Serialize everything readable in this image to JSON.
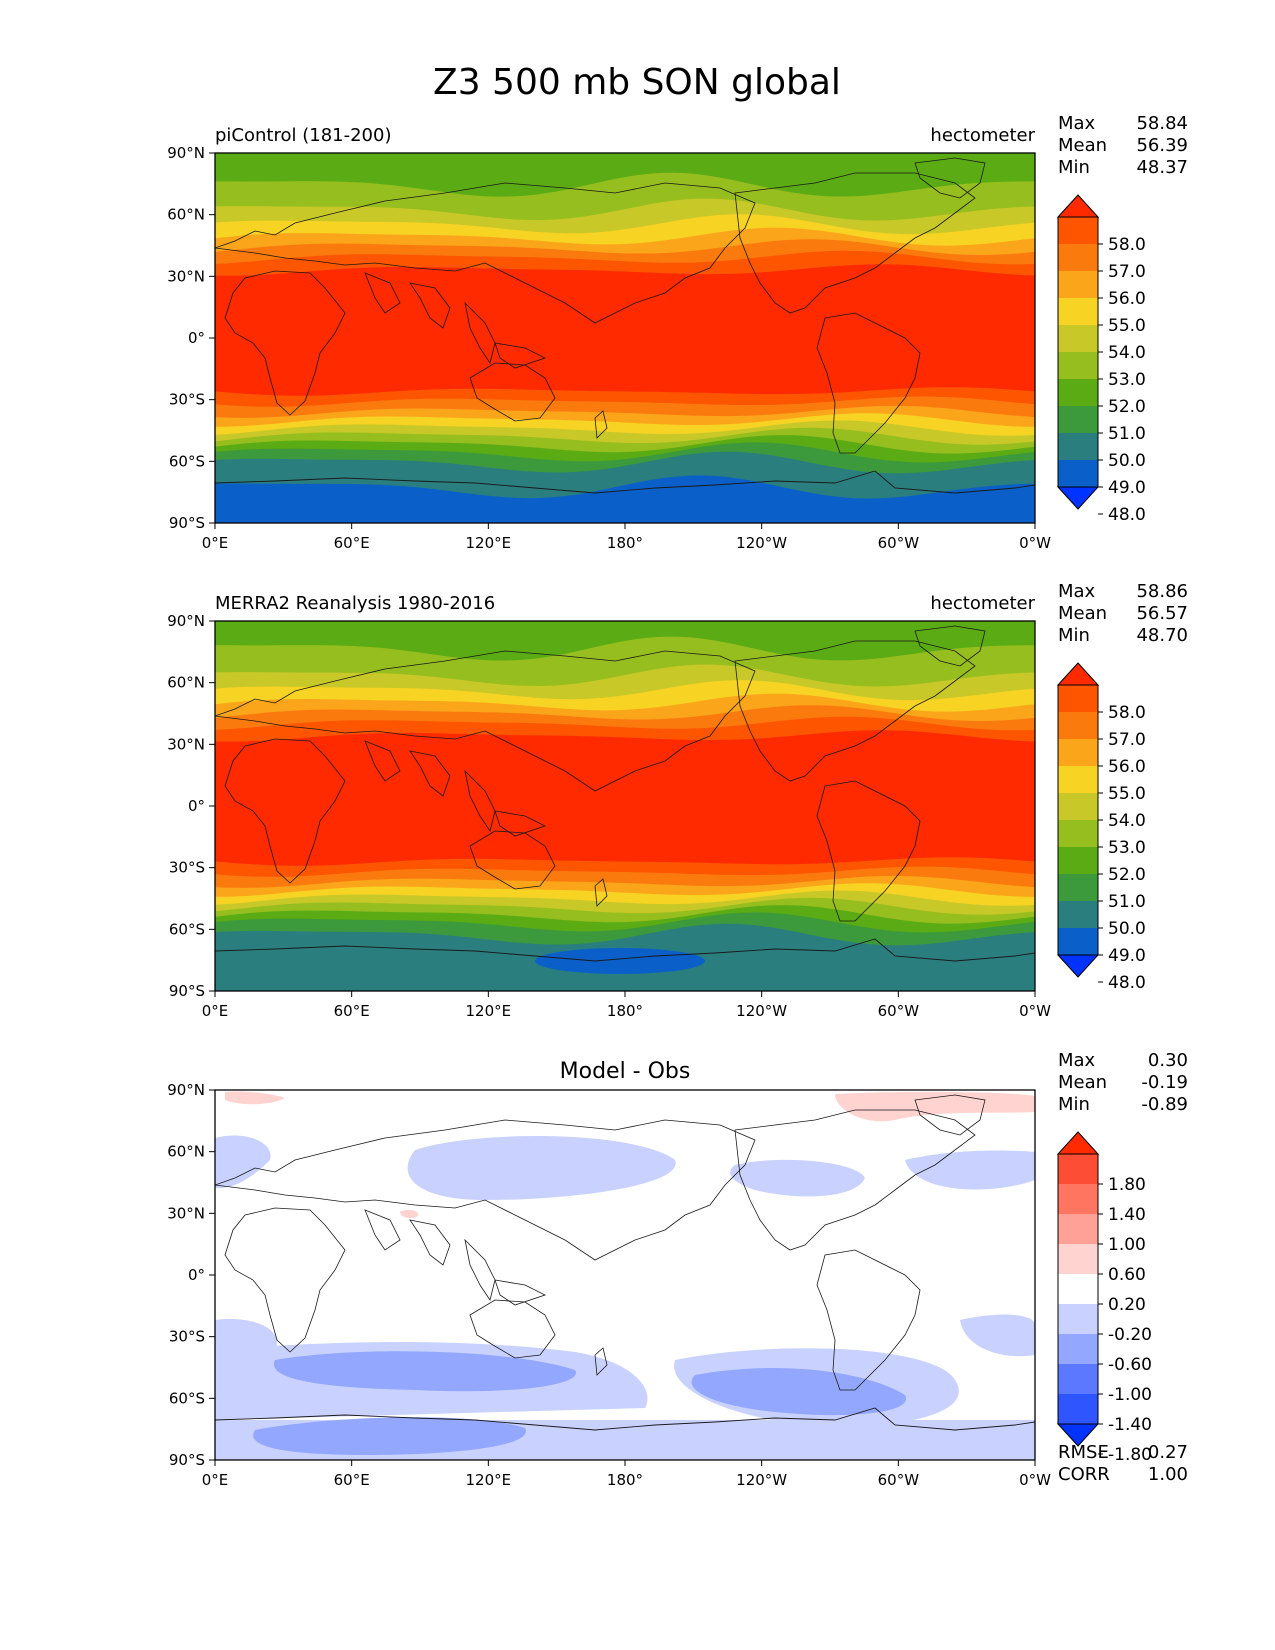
{
  "figure": {
    "title": "Z3 500 mb SON global"
  },
  "axes": {
    "lat_ticks": [
      "90°N",
      "60°N",
      "30°N",
      "0°",
      "30°S",
      "60°S",
      "90°S"
    ],
    "lon_ticks": [
      "0°E",
      "60°E",
      "120°E",
      "180°",
      "120°W",
      "60°W",
      "0°W"
    ]
  },
  "colors": {
    "full_field": [
      "#0033ff",
      "#0a60c8",
      "#2a7e7e",
      "#3c9a3c",
      "#5aab14",
      "#96be1e",
      "#c8c828",
      "#f7d323",
      "#fba51a",
      "#fb7a0e",
      "#fd5500",
      "#ff2a00"
    ],
    "diff_field": [
      "#0033ff",
      "#2e55ff",
      "#5b78ff",
      "#93a7ff",
      "#c9d2ff",
      "#ffffff",
      "#ffd3d0",
      "#ffa196",
      "#ff7560",
      "#fe4d35",
      "#ff2a00"
    ],
    "coast": "#1a1a1a"
  },
  "panels": [
    {
      "id": "model",
      "left_title": "piControl (181-200)",
      "center_title": "",
      "right_title": "hectometer",
      "stats": [
        {
          "label": "Max",
          "value": "58.84"
        },
        {
          "label": "Mean",
          "value": "56.39"
        },
        {
          "label": "Min",
          "value": "48.37"
        }
      ],
      "colorbar_labels": [
        "58.0",
        "57.0",
        "56.0",
        "55.0",
        "54.0",
        "53.0",
        "52.0",
        "51.0",
        "50.0",
        "49.0",
        "48.0"
      ],
      "footer_stats": []
    },
    {
      "id": "obs",
      "left_title": "MERRA2 Reanalysis 1980-2016",
      "center_title": "",
      "right_title": "hectometer",
      "stats": [
        {
          "label": "Max",
          "value": "58.86"
        },
        {
          "label": "Mean",
          "value": "56.57"
        },
        {
          "label": "Min",
          "value": "48.70"
        }
      ],
      "colorbar_labels": [
        "58.0",
        "57.0",
        "56.0",
        "55.0",
        "54.0",
        "53.0",
        "52.0",
        "51.0",
        "50.0",
        "49.0",
        "48.0"
      ],
      "footer_stats": []
    },
    {
      "id": "diff",
      "left_title": "",
      "center_title": "Model - Obs",
      "right_title": "",
      "stats": [
        {
          "label": "Max",
          "value": "0.30"
        },
        {
          "label": "Mean",
          "value": "-0.19"
        },
        {
          "label": "Min",
          "value": "-0.89"
        }
      ],
      "colorbar_labels": [
        "1.80",
        "1.40",
        "1.00",
        "0.60",
        "0.20",
        "-0.20",
        "-0.60",
        "-1.00",
        "-1.40",
        "-1.80"
      ],
      "footer_stats": [
        {
          "label": "RMSE",
          "value": "0.27"
        },
        {
          "label": "CORR",
          "value": "1.00"
        }
      ]
    }
  ]
}
